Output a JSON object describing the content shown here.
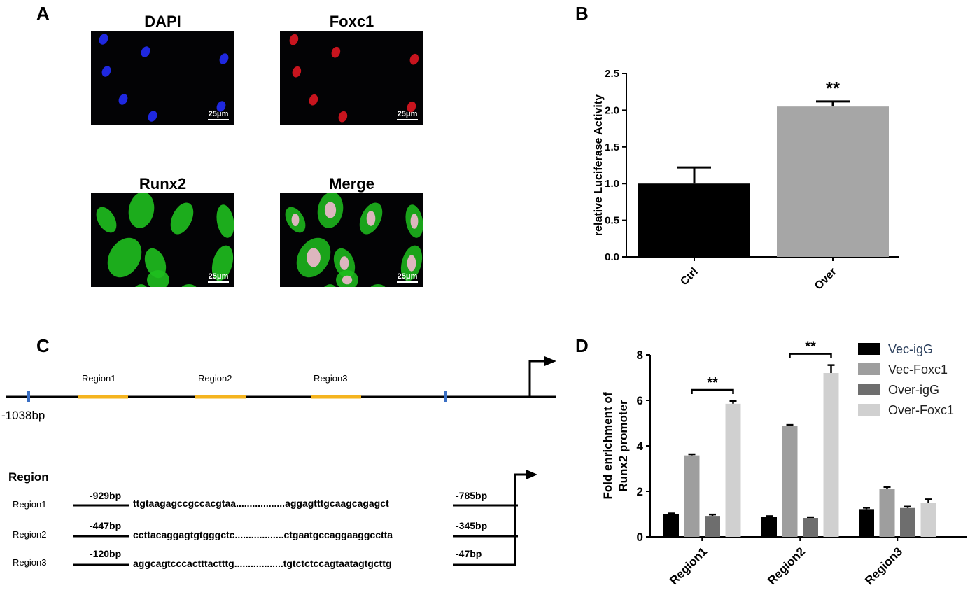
{
  "panels": {
    "a_letter": "A",
    "b_letter": "B",
    "c_letter": "C",
    "d_letter": "D"
  },
  "panel_a": {
    "images": [
      {
        "title": "DAPI",
        "scale": "25μm",
        "stain": "blue"
      },
      {
        "title": "Foxc1",
        "scale": "25μm",
        "stain": "red"
      },
      {
        "title": "Runx2",
        "scale": "25μm",
        "stain": "green"
      },
      {
        "title": "Merge",
        "scale": "25μm",
        "stain": "merge"
      }
    ],
    "colors": {
      "blue": "#1f28e0",
      "red": "#c8141e",
      "green": "#1fbf1f",
      "merge_nucleus": "#f2b8d0"
    }
  },
  "panel_c": {
    "top_labels": {
      "region1": "Region1",
      "region2": "Region2",
      "region3": "Region3",
      "start": "-1038bp"
    },
    "table_header": "Region",
    "rows": [
      {
        "name": "Region1",
        "start": "-929bp",
        "seq_left": "ttgtaagagccgccacgtaa",
        "dots": "..................",
        "seq_right": "aggagtttgcaagcagagct",
        "end": "-785bp"
      },
      {
        "name": "Region2",
        "start": "-447bp",
        "seq_left": "ccttacaggagtgtgggctc",
        "dots": "..................",
        "seq_right": "ctgaatgccaggaaggcctta",
        "end": "-345bp"
      },
      {
        "name": "Region3",
        "start": "-120bp",
        "seq_left": "aggcagtcccactttactttg",
        "dots": "..................",
        "seq_right": "tgtctctccagtaatagtgcttg",
        "end": "-47bp"
      }
    ],
    "colors": {
      "region": "#f5b41e",
      "marker": "#3a6fc4"
    }
  },
  "chart_data": [
    {
      "type": "bar",
      "panel": "B",
      "categories": [
        "Ctrl",
        "Over"
      ],
      "values": [
        1.0,
        2.05
      ],
      "errors": [
        0.22,
        0.07
      ],
      "ylabel": "relative Luciferase Activity",
      "ylim": [
        0,
        2.5
      ],
      "yticks": [
        "0.0",
        "0.5",
        "1.0",
        "1.5",
        "2.0",
        "2.5"
      ],
      "bar_colors": [
        "#000000",
        "#a6a6a6"
      ],
      "annotation": "**"
    },
    {
      "type": "bar",
      "panel": "D",
      "categories": [
        "Region1",
        "Region2",
        "Region3"
      ],
      "series": [
        {
          "name": "Vec-igG",
          "values": [
            1.0,
            0.88,
            1.22
          ],
          "errors": [
            0.03,
            0.03,
            0.06
          ],
          "color": "#000000"
        },
        {
          "name": "Vec-Foxc1",
          "values": [
            3.58,
            4.87,
            2.12
          ],
          "errors": [
            0.05,
            0.05,
            0.07
          ],
          "color": "#9e9e9e"
        },
        {
          "name": "Over-igG",
          "values": [
            0.92,
            0.83,
            1.27
          ],
          "errors": [
            0.06,
            0.03,
            0.06
          ],
          "color": "#6e6e6e"
        },
        {
          "name": "Over-Foxc1",
          "values": [
            5.85,
            7.2,
            1.5
          ],
          "errors": [
            0.12,
            0.35,
            0.15
          ],
          "color": "#d0d0d0"
        }
      ],
      "ylabel_line1": "Fold enrichment of",
      "ylabel_line2": "Runx2 promoter",
      "ylim": [
        0,
        8
      ],
      "yticks": [
        "0",
        "2",
        "4",
        "6",
        "8"
      ],
      "annotations": [
        {
          "category": "Region1",
          "label": "**"
        },
        {
          "category": "Region2",
          "label": "**"
        }
      ],
      "legend_position": "top-right",
      "legend_text_color_first": "#2b3f5c"
    }
  ]
}
